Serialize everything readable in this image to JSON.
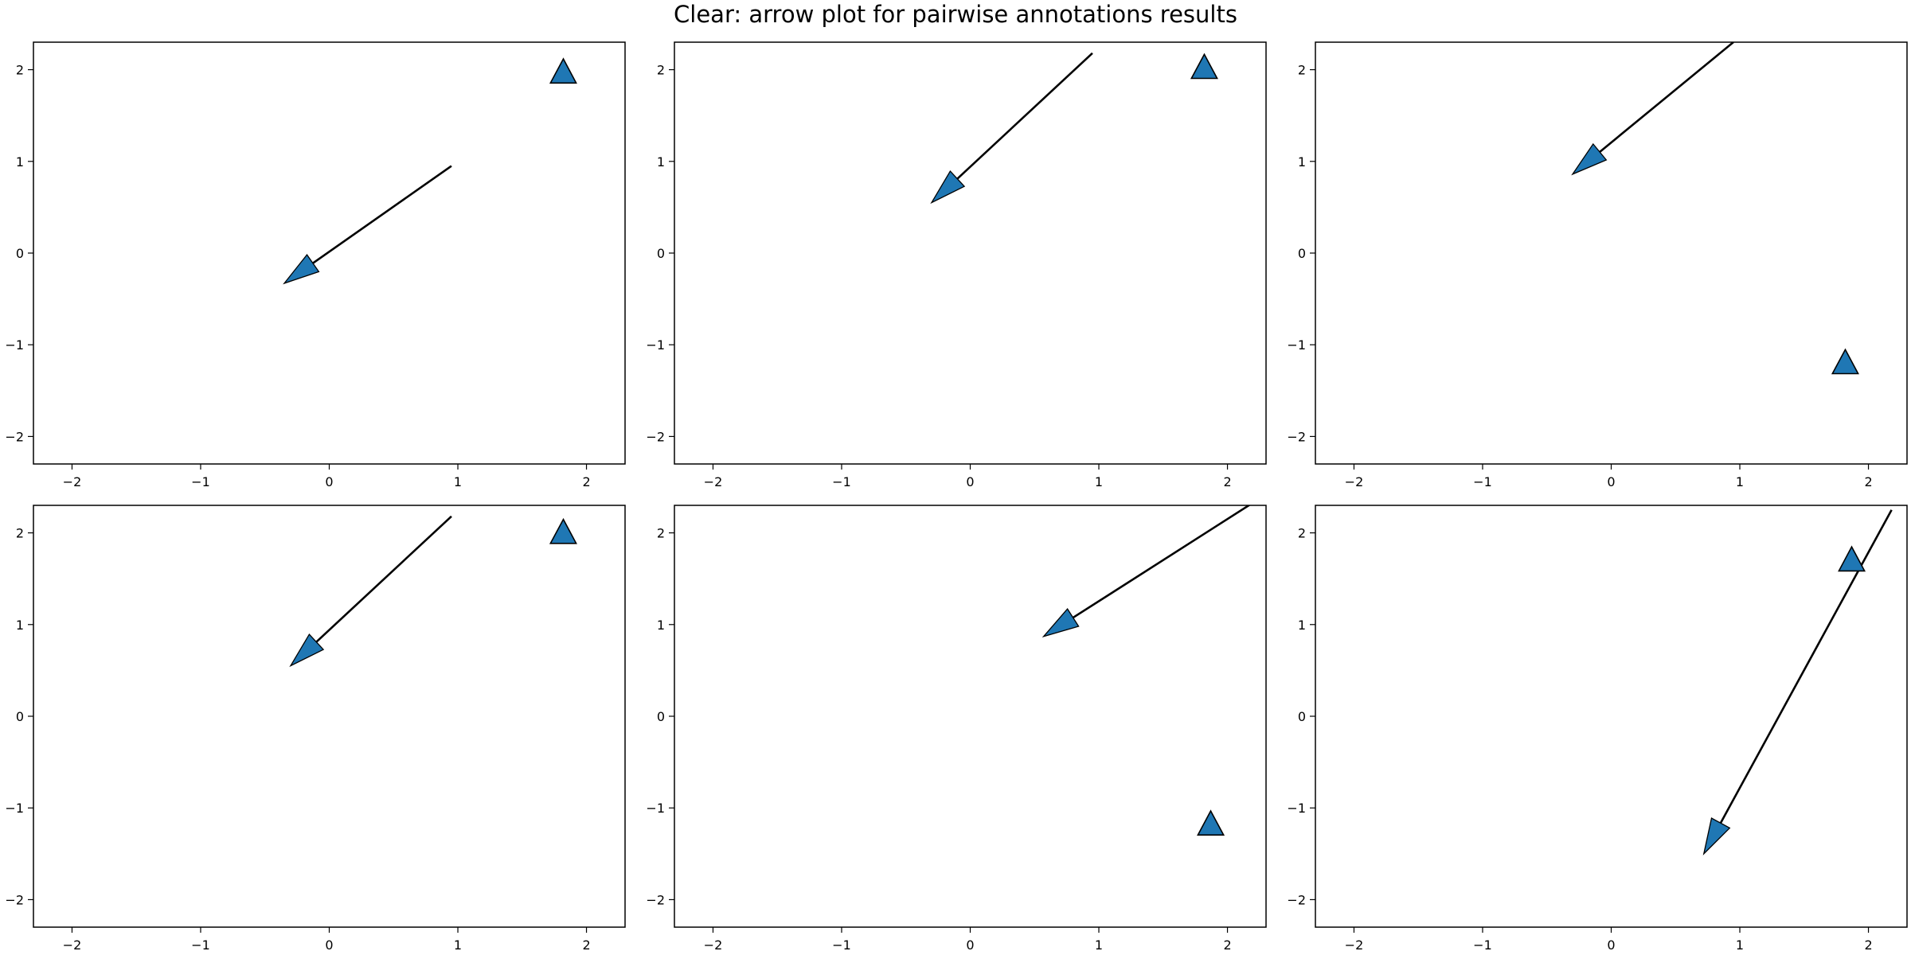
{
  "title": "Clear: arrow plot for pairwise annotations results",
  "colors": {
    "marker_fill": "#1f77b4",
    "arrow": "#000000",
    "frame": "#000000"
  },
  "chart_data": [
    {
      "type": "scatter",
      "subplot": "top-left",
      "xlim": [
        -2.3,
        2.3
      ],
      "ylim": [
        -2.3,
        2.3
      ],
      "xticks": [
        -2,
        -1,
        0,
        1,
        2
      ],
      "yticks": [
        -2,
        -1,
        0,
        1,
        2
      ],
      "xtick_labels": [
        "−2",
        "−1",
        "0",
        "1",
        "2"
      ],
      "ytick_labels": [
        "−2",
        "−1",
        "0",
        "1",
        "2"
      ],
      "arrow": {
        "from": [
          0.95,
          0.95
        ],
        "to": [
          -0.35,
          -0.33
        ]
      },
      "marker": {
        "shape": "triangle-up",
        "x": 1.82,
        "y": 1.97
      }
    },
    {
      "type": "scatter",
      "subplot": "top-middle",
      "xlim": [
        -2.3,
        2.3
      ],
      "ylim": [
        -2.3,
        2.3
      ],
      "xticks": [
        -2,
        -1,
        0,
        1,
        2
      ],
      "yticks": [
        -2,
        -1,
        0,
        1,
        2
      ],
      "xtick_labels": [
        "−2",
        "−1",
        "0",
        "1",
        "2"
      ],
      "ytick_labels": [
        "−2",
        "−1",
        "0",
        "1",
        "2"
      ],
      "arrow": {
        "from": [
          0.95,
          2.18
        ],
        "to": [
          -0.3,
          0.55
        ]
      },
      "marker": {
        "shape": "triangle-up",
        "x": 1.82,
        "y": 2.02
      }
    },
    {
      "type": "scatter",
      "subplot": "top-right",
      "xlim": [
        -2.3,
        2.3
      ],
      "ylim": [
        -2.3,
        2.3
      ],
      "xticks": [
        -2,
        -1,
        0,
        1,
        2
      ],
      "yticks": [
        -2,
        -1,
        0,
        1,
        2
      ],
      "xtick_labels": [
        "−2",
        "−1",
        "0",
        "1",
        "2"
      ],
      "ytick_labels": [
        "−2",
        "−1",
        "0",
        "1",
        "2"
      ],
      "arrow": {
        "from": [
          0.95,
          2.3
        ],
        "to": [
          -0.3,
          0.86
        ]
      },
      "marker": {
        "shape": "triangle-up",
        "x": 1.82,
        "y": -1.2
      }
    },
    {
      "type": "scatter",
      "subplot": "bottom-left",
      "xlim": [
        -2.3,
        2.3
      ],
      "ylim": [
        -2.3,
        2.3
      ],
      "xticks": [
        -2,
        -1,
        0,
        1,
        2
      ],
      "yticks": [
        -2,
        -1,
        0,
        1,
        2
      ],
      "xtick_labels": [
        "−2",
        "−1",
        "0",
        "1",
        "2"
      ],
      "ytick_labels": [
        "−2",
        "−1",
        "0",
        "1",
        "2"
      ],
      "arrow": {
        "from": [
          0.95,
          2.18
        ],
        "to": [
          -0.3,
          0.55
        ]
      },
      "marker": {
        "shape": "triangle-up",
        "x": 1.82,
        "y": 2.0
      }
    },
    {
      "type": "scatter",
      "subplot": "bottom-middle",
      "xlim": [
        -2.3,
        2.3
      ],
      "ylim": [
        -2.3,
        2.3
      ],
      "xticks": [
        -2,
        -1,
        0,
        1,
        2
      ],
      "yticks": [
        -2,
        -1,
        0,
        1,
        2
      ],
      "xtick_labels": [
        "−2",
        "−1",
        "0",
        "1",
        "2"
      ],
      "ytick_labels": [
        "−2",
        "−1",
        "0",
        "1",
        "2"
      ],
      "arrow": {
        "from": [
          2.2,
          2.33
        ],
        "to": [
          0.57,
          0.87
        ]
      },
      "marker": {
        "shape": "triangle-up",
        "x": 1.87,
        "y": -1.18
      }
    },
    {
      "type": "scatter",
      "subplot": "bottom-right",
      "xlim": [
        -2.3,
        2.3
      ],
      "ylim": [
        -2.3,
        2.3
      ],
      "xticks": [
        -2,
        -1,
        0,
        1,
        2
      ],
      "yticks": [
        -2,
        -1,
        0,
        1,
        2
      ],
      "xtick_labels": [
        "−2",
        "−1",
        "0",
        "1",
        "2"
      ],
      "ytick_labels": [
        "−2",
        "−1",
        "0",
        "1",
        "2"
      ],
      "arrow": {
        "from": [
          2.18,
          2.25
        ],
        "to": [
          0.72,
          -1.5
        ]
      },
      "marker": {
        "shape": "triangle-up",
        "x": 1.87,
        "y": 1.7
      }
    }
  ]
}
